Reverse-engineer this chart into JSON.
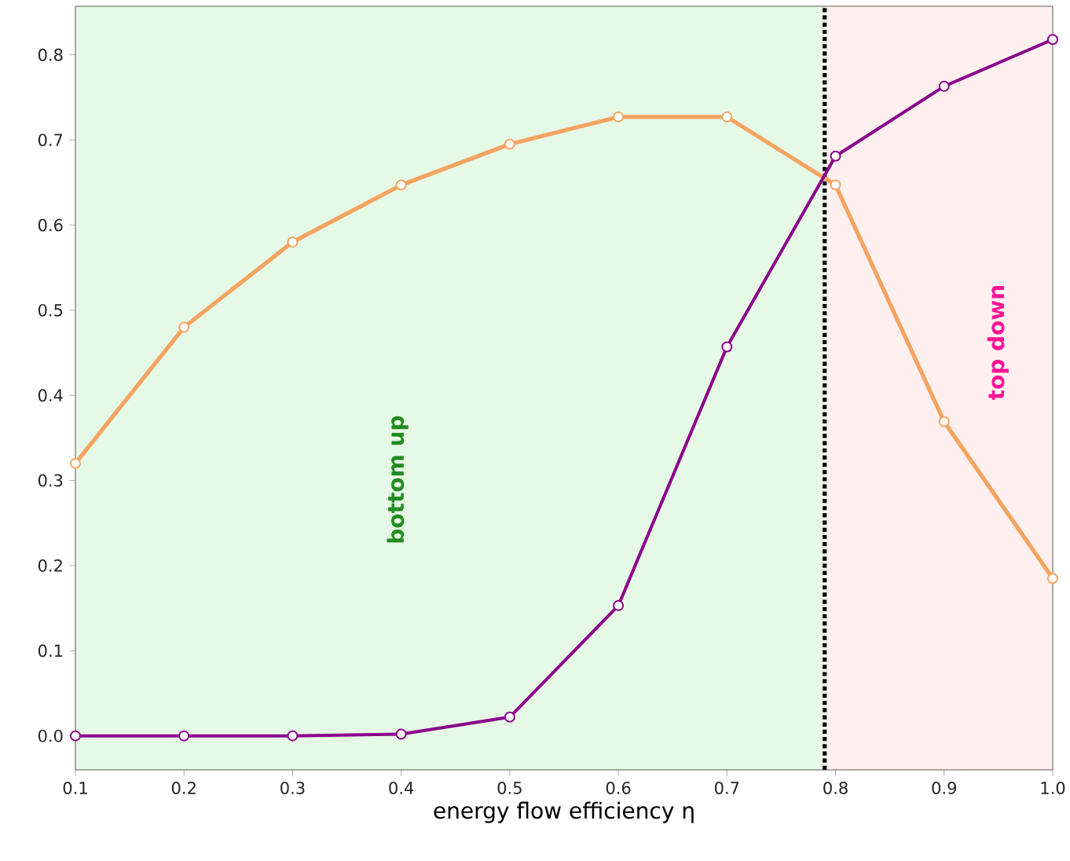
{
  "chart_data": {
    "type": "line",
    "xlabel": "energy flow efficiency η",
    "x": [
      0.1,
      0.2,
      0.3,
      0.4,
      0.5,
      0.6,
      0.7,
      0.8,
      0.9,
      1.0
    ],
    "series": [
      {
        "color": "#f4a460",
        "values": [
          0.32,
          0.48,
          0.58,
          0.647,
          0.695,
          0.727,
          0.727,
          0.647,
          0.369,
          0.185
        ]
      },
      {
        "color": "#8b008b",
        "values": [
          0.0,
          0.0,
          0.0,
          0.002,
          0.022,
          0.153,
          0.457,
          0.681,
          0.763,
          0.818
        ]
      }
    ],
    "xlim": [
      0.1,
      1.0
    ],
    "ylim": [
      -0.04,
      0.857
    ],
    "xticks": [
      0.1,
      0.2,
      0.3,
      0.4,
      0.5,
      0.6,
      0.7,
      0.8,
      0.9,
      {
        "value": 1.0,
        "label": "1.0"
      }
    ],
    "yticks": [
      {
        "value": 0.0,
        "label": "0.0"
      },
      0.1,
      0.2,
      0.3,
      0.4,
      0.5,
      0.6,
      0.7,
      0.8
    ],
    "bands": [
      {
        "axis": "x",
        "from": 0.1,
        "to": 0.79,
        "label": "bottom up",
        "color": "#e6f8e6"
      },
      {
        "axis": "x",
        "from": 0.79,
        "to": 1.0,
        "label": "top down",
        "color": "#fff0f0"
      }
    ],
    "ref_lines": [
      {
        "axis": "x",
        "value": 0.79,
        "color": "#000000",
        "line_style": "dotted"
      }
    ],
    "marker": "circle",
    "line_style": "solid"
  }
}
